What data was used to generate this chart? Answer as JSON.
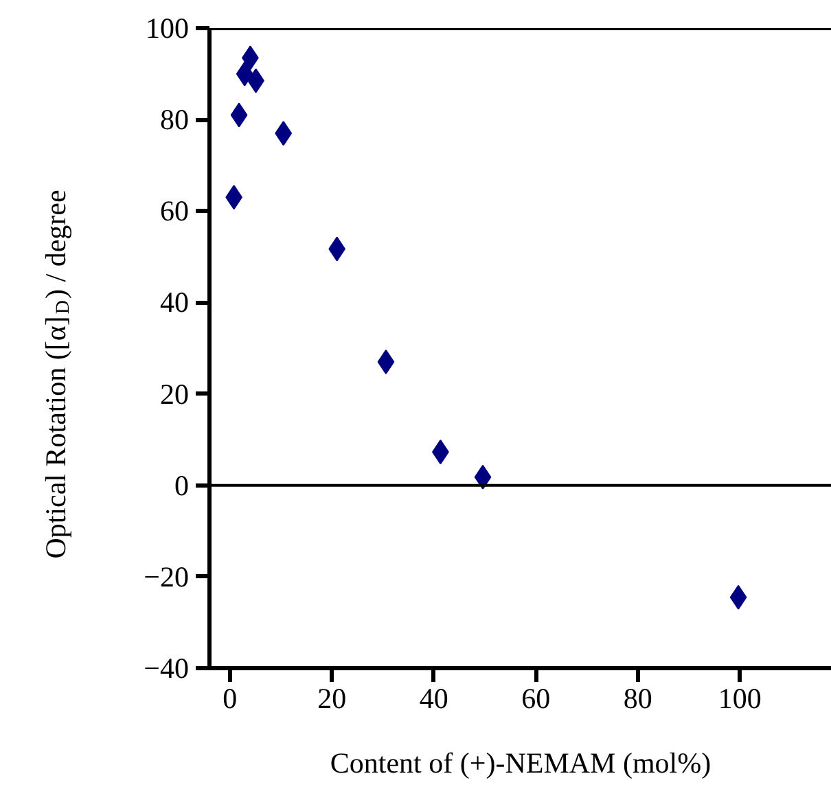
{
  "chart_data": {
    "type": "scatter",
    "xlabel": "Content of (+)-NEMAM (mol%)",
    "ylabel": "Optical Rotation ([α]$_{D}$) / degree",
    "x": [
      0.8,
      1.8,
      2.9,
      4,
      5.1,
      10.5,
      21,
      30.6,
      41.3,
      49.6,
      99.7
    ],
    "series": [
      {
        "color": "#000080",
        "values": [
          63,
          81,
          90,
          93.5,
          88.5,
          77,
          51.7,
          27,
          7.3,
          1.8,
          -24.5
        ]
      }
    ],
    "xlim": [
      -4,
      118
    ],
    "ylim": [
      -40,
      100
    ],
    "xticks": [
      0,
      20,
      40,
      60,
      80,
      100
    ],
    "yticks": [
      -40,
      -20,
      0,
      20,
      40,
      60,
      80,
      100
    ],
    "ref_lines": [
      {
        "axis": "y",
        "value": 0,
        "label": null,
        "color": "#000000"
      }
    ],
    "marker": "diamond",
    "grid": false
  }
}
